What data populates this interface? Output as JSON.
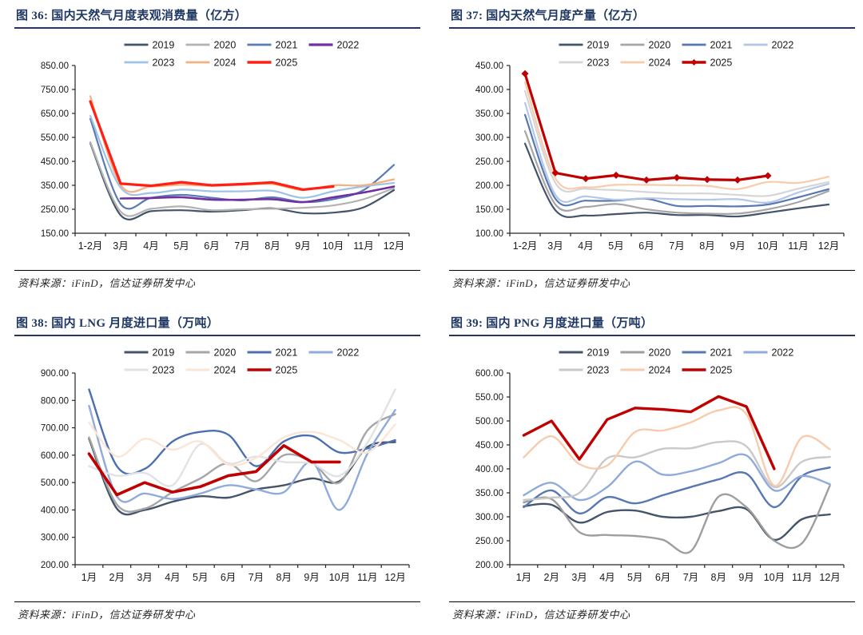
{
  "page": {
    "background": "#FFFFFF"
  },
  "chart_data": [
    {
      "id": "fig36",
      "type": "line",
      "title": "图 36:  国内天然气月度表观消费量（亿方）",
      "source": "资料来源：iFinD，信达证券研发中心",
      "categories": [
        "1-2月",
        "3月",
        "4月",
        "5月",
        "6月",
        "7月",
        "8月",
        "9月",
        "10月",
        "11月",
        "12月"
      ],
      "ylim": [
        150,
        850
      ],
      "ytick_step": 100,
      "legend_position": "top-two-rows",
      "grid": false,
      "series": [
        {
          "name": "2019",
          "color": "#44546A",
          "width": 2.2,
          "smooth": true,
          "values": [
            525,
            225,
            242,
            246,
            240,
            246,
            254,
            234,
            236,
            258,
            330
          ]
        },
        {
          "name": "2020",
          "color": "#B3B3B3",
          "width": 2.2,
          "smooth": true,
          "values": [
            530,
            240,
            252,
            262,
            246,
            250,
            252,
            256,
            266,
            292,
            338
          ]
        },
        {
          "name": "2021",
          "color": "#5B7BB4",
          "width": 2.2,
          "smooth": true,
          "values": [
            628,
            272,
            298,
            310,
            298,
            287,
            300,
            280,
            292,
            330,
            435
          ]
        },
        {
          "name": "2022",
          "color": "#7030A0",
          "width": 2.6,
          "smooth": true,
          "values": [
            null,
            295,
            297,
            300,
            290,
            290,
            292,
            280,
            300,
            320,
            345
          ]
        },
        {
          "name": "2023",
          "color": "#9DC3E6",
          "width": 2.2,
          "smooth": true,
          "values": [
            640,
            340,
            318,
            332,
            325,
            325,
            327,
            298,
            325,
            345,
            360
          ]
        },
        {
          "name": "2024",
          "color": "#F4B183",
          "width": 2.2,
          "smooth": true,
          "values": [
            722,
            352,
            345,
            352,
            348,
            352,
            355,
            330,
            350,
            350,
            375
          ]
        },
        {
          "name": "2025",
          "color": "#FF1F14",
          "width": 3.2,
          "smooth": false,
          "values": [
            700,
            357,
            348,
            363,
            350,
            355,
            362,
            332,
            345,
            null,
            null
          ]
        }
      ]
    },
    {
      "id": "fig37",
      "type": "line",
      "title": "图 37:  国内天然气月度产量（亿方）",
      "source": "资料来源：iFinD，信达证券研发中心",
      "categories": [
        "1-2月",
        "3月",
        "4月",
        "5月",
        "6月",
        "7月",
        "8月",
        "9月",
        "10月",
        "11月",
        "12月"
      ],
      "ylim": [
        100,
        450
      ],
      "ytick_step": 50,
      "legend_position": "top-two-rows",
      "grid": false,
      "series": [
        {
          "name": "2019",
          "color": "#44546A",
          "width": 2.2,
          "smooth": true,
          "values": [
            287,
            148,
            137,
            140,
            143,
            138,
            138,
            135,
            143,
            152,
            160
          ]
        },
        {
          "name": "2020",
          "color": "#A6A6A6",
          "width": 2.2,
          "smooth": true,
          "values": [
            313,
            160,
            155,
            161,
            150,
            143,
            141,
            141,
            150,
            165,
            188
          ]
        },
        {
          "name": "2021",
          "color": "#5878B4",
          "width": 2.2,
          "smooth": true,
          "values": [
            347,
            172,
            168,
            168,
            172,
            157,
            157,
            156,
            160,
            175,
            192
          ]
        },
        {
          "name": "2022",
          "color": "#B4C7E7",
          "width": 2.2,
          "smooth": true,
          "values": [
            372,
            180,
            177,
            170,
            173,
            171,
            170,
            171,
            164,
            185,
            203
          ]
        },
        {
          "name": "2023",
          "color": "#D6D6D6",
          "width": 2.2,
          "smooth": true,
          "values": [
            397,
            205,
            193,
            190,
            186,
            183,
            183,
            180,
            178,
            193,
            207
          ]
        },
        {
          "name": "2024",
          "color": "#F8CBAD",
          "width": 2.2,
          "smooth": true,
          "values": [
            415,
            215,
            196,
            201,
            201,
            200,
            199,
            192,
            207,
            205,
            218
          ]
        },
        {
          "name": "2025",
          "color": "#C00000",
          "width": 3.2,
          "smooth": false,
          "marker": "diamond",
          "values": [
            433,
            226,
            214,
            221,
            211,
            216,
            212,
            211,
            220,
            null,
            null
          ]
        }
      ]
    },
    {
      "id": "fig38",
      "type": "line",
      "title": "图 38:  国内 LNG 月度进口量（万吨）",
      "source": "资料来源：iFinD，信达证券研发中心",
      "categories": [
        "1月",
        "2月",
        "3月",
        "4月",
        "5月",
        "6月",
        "7月",
        "8月",
        "9月",
        "10月",
        "11月",
        "12月"
      ],
      "ylim": [
        200,
        900
      ],
      "ytick_step": 100,
      "legend_position": "top-two-rows",
      "grid": false,
      "series": [
        {
          "name": "2019",
          "color": "#44546A",
          "width": 2.4,
          "smooth": true,
          "values": [
            660,
            405,
            400,
            430,
            450,
            445,
            475,
            490,
            515,
            505,
            630,
            648
          ]
        },
        {
          "name": "2020",
          "color": "#A6A6A6",
          "width": 2.4,
          "smooth": true,
          "values": [
            665,
            420,
            405,
            465,
            515,
            570,
            505,
            600,
            575,
            500,
            690,
            750
          ]
        },
        {
          "name": "2021",
          "color": "#4C6FAF",
          "width": 2.4,
          "smooth": true,
          "values": [
            840,
            560,
            550,
            650,
            685,
            675,
            560,
            650,
            670,
            610,
            625,
            655
          ]
        },
        {
          "name": "2022",
          "color": "#8FAADC",
          "width": 2.4,
          "smooth": true,
          "values": [
            780,
            450,
            460,
            440,
            460,
            490,
            475,
            465,
            575,
            400,
            605,
            765
          ]
        },
        {
          "name": "2023",
          "color": "#E2E2E2",
          "width": 2.4,
          "smooth": true,
          "values": [
            560,
            525,
            535,
            490,
            640,
            570,
            595,
            575,
            570,
            525,
            645,
            840
          ]
        },
        {
          "name": "2024",
          "color": "#FBE5D6",
          "width": 2.4,
          "smooth": true,
          "values": [
            720,
            595,
            660,
            620,
            650,
            565,
            590,
            665,
            685,
            655,
            610,
            712
          ]
        },
        {
          "name": "2025",
          "color": "#C00000",
          "width": 3.6,
          "smooth": false,
          "values": [
            605,
            455,
            500,
            465,
            485,
            525,
            540,
            635,
            575,
            575,
            null,
            null
          ]
        }
      ]
    },
    {
      "id": "fig39",
      "type": "line",
      "title": "图 39:  国内 PNG 月度进口量（万吨）",
      "source": "资料来源：iFinD，信达证券研发中心",
      "categories": [
        "1月",
        "2月",
        "3月",
        "4月",
        "5月",
        "6月",
        "7月",
        "8月",
        "9月",
        "10月",
        "11月",
        "12月"
      ],
      "ylim": [
        200,
        600
      ],
      "ytick_step": 50,
      "legend_position": "top-two-rows",
      "grid": false,
      "series": [
        {
          "name": "2019",
          "color": "#44546A",
          "width": 2.4,
          "smooth": true,
          "values": [
            322,
            325,
            288,
            310,
            313,
            300,
            300,
            312,
            316,
            252,
            295,
            305
          ]
        },
        {
          "name": "2020",
          "color": "#9E9E9E",
          "width": 2.4,
          "smooth": true,
          "values": [
            330,
            337,
            268,
            262,
            260,
            252,
            228,
            342,
            320,
            250,
            245,
            365
          ]
        },
        {
          "name": "2021",
          "color": "#5878B4",
          "width": 2.4,
          "smooth": true,
          "values": [
            320,
            355,
            307,
            341,
            328,
            345,
            362,
            378,
            390,
            320,
            385,
            403
          ]
        },
        {
          "name": "2022",
          "color": "#8FAADC",
          "width": 2.4,
          "smooth": true,
          "values": [
            345,
            371,
            335,
            362,
            415,
            388,
            395,
            412,
            428,
            355,
            385,
            368
          ]
        },
        {
          "name": "2023",
          "color": "#C9C9C9",
          "width": 2.4,
          "smooth": true,
          "values": [
            335,
            340,
            350,
            422,
            424,
            442,
            443,
            456,
            447,
            362,
            415,
            425
          ]
        },
        {
          "name": "2024",
          "color": "#F8CBAD",
          "width": 2.4,
          "smooth": true,
          "values": [
            424,
            468,
            410,
            407,
            477,
            480,
            497,
            522,
            514,
            365,
            466,
            441
          ]
        },
        {
          "name": "2025",
          "color": "#C00000",
          "width": 3.4,
          "smooth": false,
          "values": [
            470,
            500,
            420,
            503,
            527,
            524,
            519,
            551,
            530,
            400,
            null,
            null
          ]
        }
      ]
    }
  ]
}
